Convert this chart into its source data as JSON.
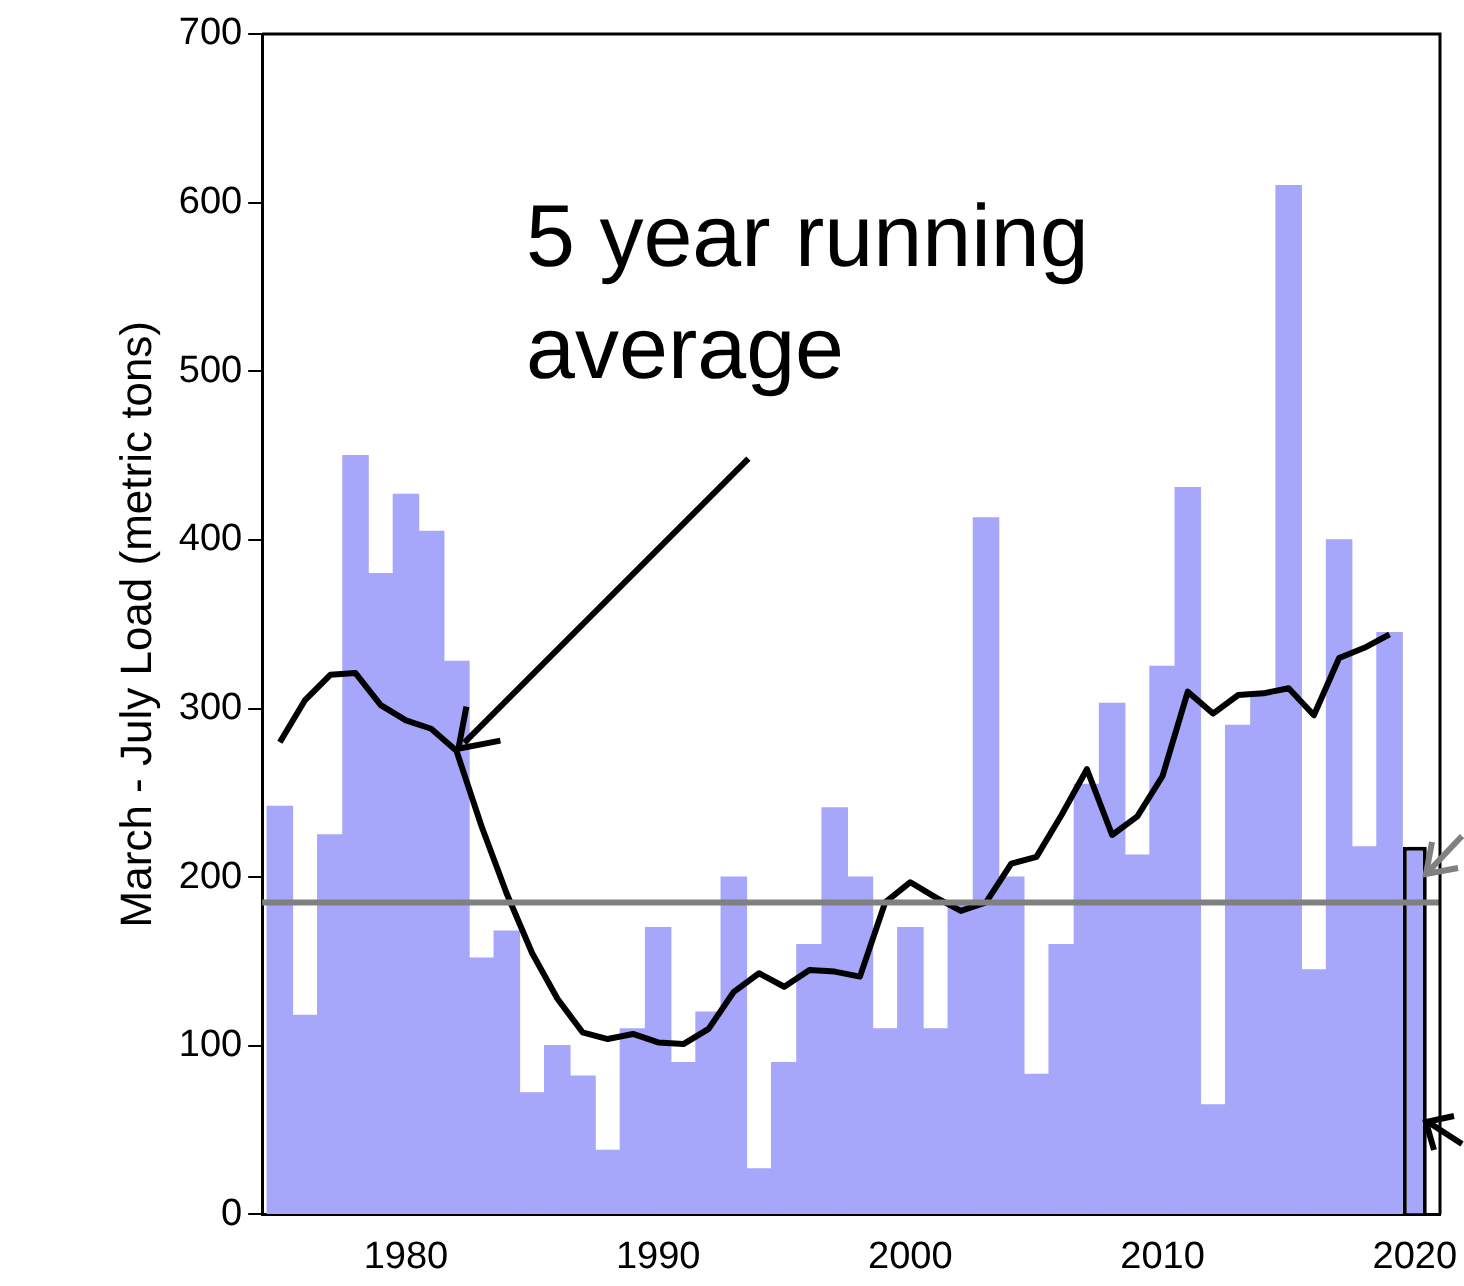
{
  "chart_data": {
    "type": "bar",
    "ylabel": "March - July Load (metric tons)",
    "annotations": [
      {
        "text": "5 year running average",
        "x": 1982,
        "y": 275
      }
    ],
    "xlim": [
      1974.3,
      2021
    ],
    "xticks": [
      1980,
      1990,
      2000,
      2010,
      2020
    ],
    "ylim": [
      0,
      700
    ],
    "yticks": [
      0,
      100,
      200,
      300,
      400,
      500,
      600,
      700
    ],
    "grid": false,
    "series": [
      {
        "color": "#a6a6fb",
        "x": [
          1975,
          1976,
          1977,
          1978,
          1979,
          1980,
          1981,
          1982,
          1983,
          1984,
          1985,
          1986,
          1987,
          1988,
          1989,
          1990,
          1991,
          1992,
          1993,
          1994,
          1995,
          1996,
          1997,
          1998,
          1999,
          2000,
          2001,
          2002,
          2003,
          2004,
          2005,
          2006,
          2007,
          2008,
          2009,
          2010,
          2011,
          2012,
          2013,
          2014,
          2015,
          2016,
          2017,
          2018,
          2019
        ],
        "values": [
          242,
          118,
          225,
          450,
          380,
          427,
          405,
          328,
          152,
          168,
          72,
          100,
          82,
          38,
          110,
          170,
          90,
          120,
          200,
          27,
          90,
          160,
          241,
          200,
          110,
          170,
          110,
          185,
          413,
          200,
          83,
          160,
          255,
          303,
          213,
          325,
          431,
          65,
          290,
          308,
          610,
          145,
          400,
          218,
          345
        ]
      },
      {
        "color": "#a6a6fb",
        "x": [
          2020
        ],
        "values": [
          218
        ]
      },
      {
        "type": "line",
        "color": "#000000",
        "x": [
          1975,
          1976,
          1977,
          1978,
          1979,
          1980,
          1981,
          1982,
          1983,
          1984,
          1985,
          1986,
          1987,
          1988,
          1989,
          1990,
          1991,
          1992,
          1993,
          1994,
          1995,
          1996,
          1997,
          1998,
          1999,
          2000,
          2001,
          2002,
          2003,
          2004,
          2005,
          2006,
          2007,
          2008,
          2009,
          2010,
          2011,
          2012,
          2013,
          2014,
          2015,
          2016,
          2017,
          2018,
          2019
        ],
        "values": [
          280,
          305,
          320,
          321,
          302,
          293,
          288,
          275,
          230,
          190,
          155,
          128,
          108,
          104,
          107,
          102,
          101,
          110,
          132,
          143,
          135,
          145,
          144,
          141,
          185,
          197,
          188,
          180,
          185,
          208,
          212,
          237,
          264,
          225,
          236,
          260,
          310,
          297,
          308,
          309,
          312,
          296,
          330,
          336,
          344
        ]
      }
    ],
    "ref_lines": [
      {
        "axis": "y",
        "value": 185,
        "color": "#808080"
      }
    ]
  }
}
